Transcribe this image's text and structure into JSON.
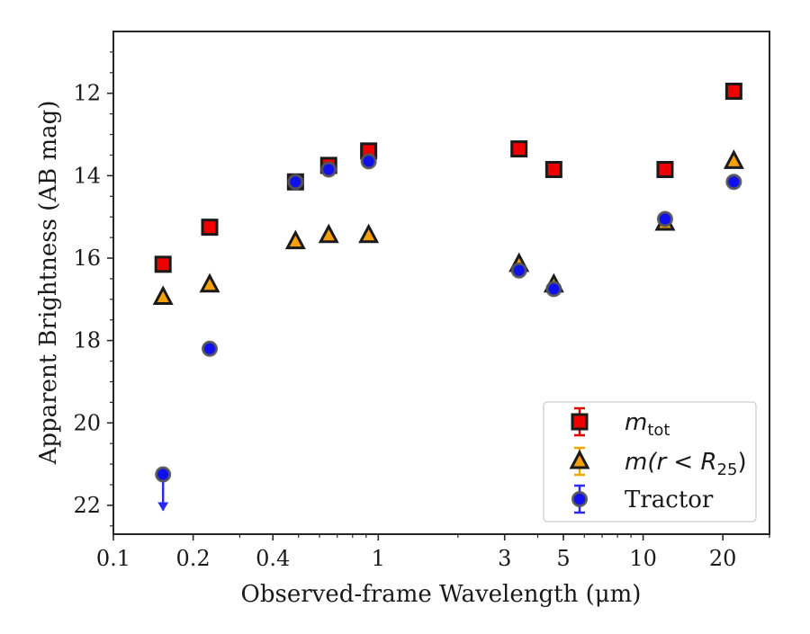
{
  "chart_data": {
    "type": "scatter",
    "xlabel": "Observed-frame Wavelength (μm)",
    "ylabel": "Apparent Brightness (AB mag)",
    "x_scale": "log",
    "xlim": [
      0.1,
      30
    ],
    "ylim": [
      22.7,
      10.5
    ],
    "y_inverted": true,
    "x_ticks": [
      {
        "value": 0.1,
        "label": "0.1"
      },
      {
        "value": 0.2,
        "label": "0.2"
      },
      {
        "value": 0.4,
        "label": "0.4"
      },
      {
        "value": 1,
        "label": "1"
      },
      {
        "value": 3,
        "label": "3"
      },
      {
        "value": 5,
        "label": "5"
      },
      {
        "value": 10,
        "label": "10"
      },
      {
        "value": 20,
        "label": "20"
      }
    ],
    "y_ticks": [
      {
        "value": 12,
        "label": "12"
      },
      {
        "value": 14,
        "label": "14"
      },
      {
        "value": 16,
        "label": "16"
      },
      {
        "value": 18,
        "label": "18"
      },
      {
        "value": 20,
        "label": "20"
      },
      {
        "value": 22,
        "label": "22"
      }
    ],
    "grid": false,
    "legend_position": "bottom-right",
    "series": [
      {
        "key": "mtot",
        "legend_main": "m",
        "legend_sub": "tot",
        "marker": "square",
        "color": "#ee0000",
        "errbar_color": "#dd0000",
        "points": [
          {
            "x": 0.154,
            "y": 16.15
          },
          {
            "x": 0.231,
            "y": 15.25
          },
          {
            "x": 0.487,
            "y": 14.15
          },
          {
            "x": 0.65,
            "y": 13.75
          },
          {
            "x": 0.92,
            "y": 13.4
          },
          {
            "x": 3.4,
            "y": 13.35
          },
          {
            "x": 4.6,
            "y": 13.85
          },
          {
            "x": 12.1,
            "y": 13.85
          },
          {
            "x": 22.0,
            "y": 11.95
          }
        ]
      },
      {
        "key": "mr25",
        "legend_main": "m(r < R",
        "legend_sub": "25",
        "legend_end": ")",
        "marker": "triangle",
        "color": "#f5a00a",
        "errbar_color": "#f0a800",
        "points": [
          {
            "x": 0.154,
            "y": 16.95
          },
          {
            "x": 0.231,
            "y": 16.65
          },
          {
            "x": 0.487,
            "y": 15.6
          },
          {
            "x": 0.65,
            "y": 15.45
          },
          {
            "x": 0.92,
            "y": 15.45
          },
          {
            "x": 3.4,
            "y": 16.15
          },
          {
            "x": 4.6,
            "y": 16.65
          },
          {
            "x": 12.1,
            "y": 15.15
          },
          {
            "x": 22.0,
            "y": 13.65
          }
        ]
      },
      {
        "key": "tractor",
        "legend_main": "Tractor",
        "marker": "circle",
        "color": "#1010ee",
        "errbar_color": "#2a2aee",
        "points": [
          {
            "x": 0.154,
            "y": 21.25,
            "upper_limit": true
          },
          {
            "x": 0.231,
            "y": 18.2
          },
          {
            "x": 0.487,
            "y": 14.15
          },
          {
            "x": 0.65,
            "y": 13.85
          },
          {
            "x": 0.92,
            "y": 13.65
          },
          {
            "x": 3.4,
            "y": 16.3
          },
          {
            "x": 4.6,
            "y": 16.75
          },
          {
            "x": 12.1,
            "y": 15.05
          },
          {
            "x": 22.0,
            "y": 14.15
          }
        ]
      }
    ]
  }
}
